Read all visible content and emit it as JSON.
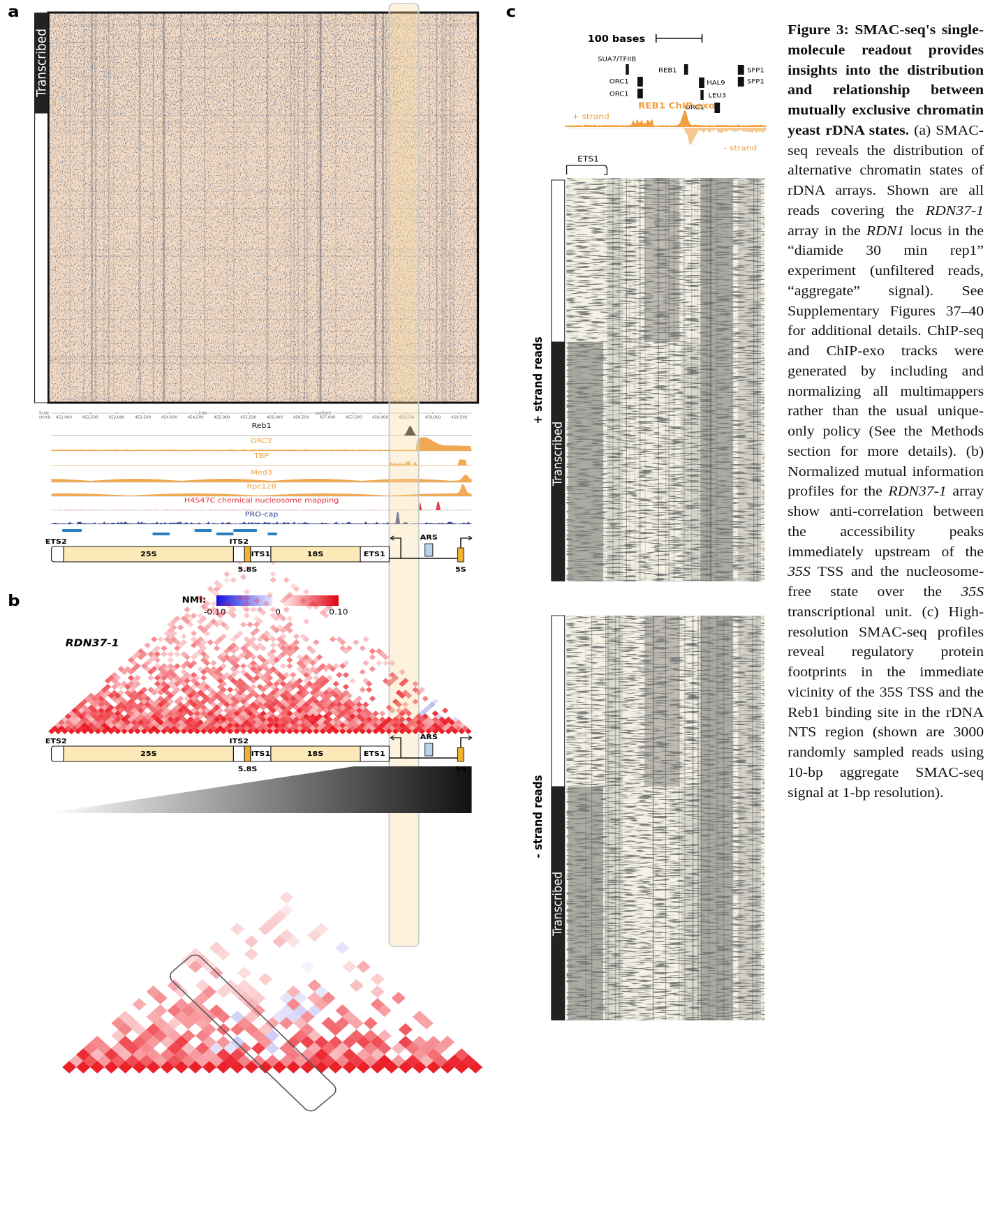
{
  "panels": {
    "a": "a",
    "b": "b",
    "c": "c"
  },
  "panel_a": {
    "transcribed": "Transcribed",
    "browser": {
      "scale": "Scale",
      "scale_length": "2 kb",
      "assembly": "sacCer3",
      "chrom": "chrXII:",
      "ticks": [
        "452,000",
        "452,500",
        "453,000",
        "453,500",
        "454,000",
        "454,500",
        "455,000",
        "455,500",
        "456,000",
        "456,500",
        "457,000",
        "457,500",
        "458,000",
        "458,500",
        "459,000",
        "459,500"
      ],
      "tracks": [
        {
          "name": "Reb1",
          "color": "#111111"
        },
        {
          "name": "ORC2",
          "color": "#f0a040"
        },
        {
          "name": "TBP",
          "color": "#f0a040"
        },
        {
          "name": "Med3",
          "color": "#f0a040"
        },
        {
          "name": "Rpc128",
          "color": "#f0a040"
        },
        {
          "name": "H4S47C chemical nucleosome mapping",
          "color": "#e0303a"
        },
        {
          "name": "PRO-cap",
          "color": "#2a3a8c"
        }
      ]
    }
  },
  "gene_map": {
    "ets2": "ETS2",
    "r25s": "25S",
    "its2": "ITS2",
    "r58s": "5.8S",
    "its1": "ITS1",
    "r18s": "18S",
    "ets1": "ETS1",
    "ars": "ARS",
    "r5s": "5S"
  },
  "panel_b": {
    "nmi_label": "NMI:",
    "nmi_ticks": [
      "-0.10",
      "0",
      "0.10"
    ],
    "array": "RDN37-1"
  },
  "panel_c": {
    "scale": "100 bases",
    "motifs": [
      "SUA7/TFIIB",
      "REB1",
      "SFP1",
      "SFP1",
      "ORC1",
      "HAL9",
      "ORC1",
      "LEU3",
      "ORC1"
    ],
    "chip": "REB1 ChIP-exo",
    "plus_strand": "+ strand",
    "minus_strand": "- strand",
    "ets1": "ETS1",
    "plus_reads": "+ strand reads",
    "minus_reads": "- strand reads",
    "transcribed": "Transcribed"
  },
  "caption": {
    "title": "Figure 3: SMAC-seq's single-molecule readout provides insights into the distribution and relationship between mutually exclusive chromatin yeast rDNA states.",
    "runs": [
      {
        "text": " (a) SMAC-seq reveals the distribution of alternative chromatin states of rDNA arrays. Shown are all reads covering the "
      },
      {
        "text": "RDN37-1",
        "italic": true
      },
      {
        "text": " array in the "
      },
      {
        "text": "RDN1",
        "italic": true
      },
      {
        "text": " locus in the “diamide 30 min rep1” experiment (unfiltered reads, “aggregate” signal). See Supplementary Figures 37–40 for additional details. ChIP-seq and ChIP-exo tracks were generated by including and normalizing all multimappers rather than the usual unique-only policy (See the Methods section for more details). (b) Normalized mutual information profiles for the "
      },
      {
        "text": "RDN37-1",
        "italic": true
      },
      {
        "text": " array show anti-correlation between the accessibility peaks immediately upstream of the "
      },
      {
        "text": "35S",
        "italic": true
      },
      {
        "text": " TSS and the nucleosome-free state over the "
      },
      {
        "text": "35S",
        "italic": true
      },
      {
        "text": " transcriptional unit. (c) High-resolution SMAC-seq profiles reveal regulatory protein footprints in the immediate vicinity of the 35S TSS and the Reb1 binding site in the rDNA NTS region (shown are 3000 randomly sampled reads using 10-bp aggregate SMAC-seq signal at 1-bp resolution)."
      }
    ]
  }
}
